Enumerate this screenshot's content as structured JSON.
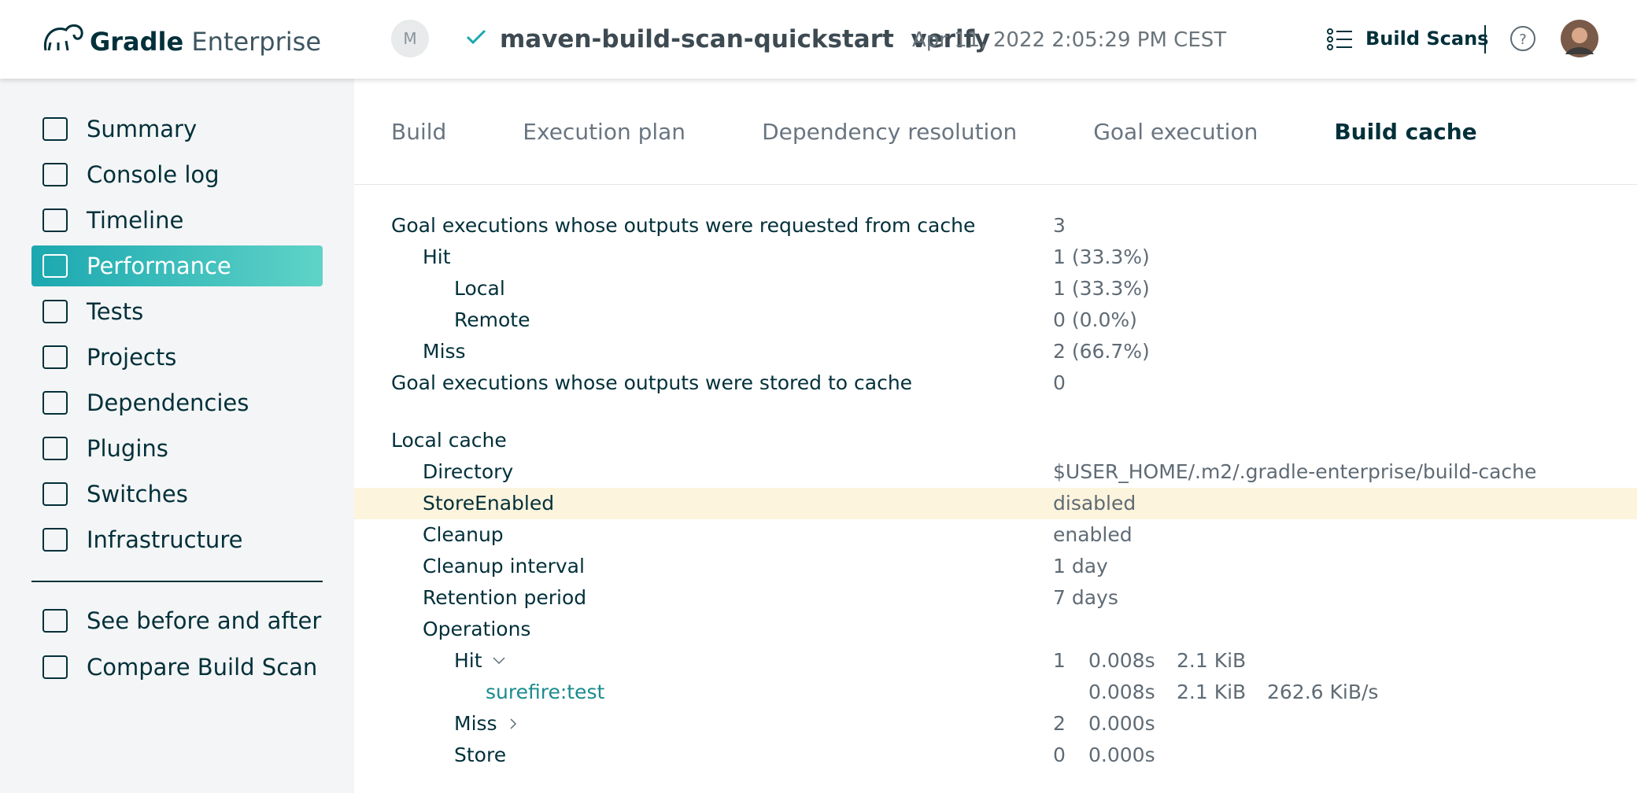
{
  "header": {
    "brand_bold": "Gradle",
    "brand_light": "Enterprise",
    "avatar_initial": "M",
    "project": "maven-build-scan-quickstart",
    "goal": "verify",
    "timestamp": "Apr 11, 2022 2:05:29 PM CEST",
    "build_scans": "Build Scans"
  },
  "sidebar": {
    "items": [
      {
        "label": "Summary"
      },
      {
        "label": "Console log"
      },
      {
        "label": "Timeline"
      },
      {
        "label": "Performance",
        "active": true
      },
      {
        "label": "Tests"
      },
      {
        "label": "Projects"
      },
      {
        "label": "Dependencies"
      },
      {
        "label": "Plugins"
      },
      {
        "label": "Switches"
      },
      {
        "label": "Infrastructure"
      }
    ],
    "extra": [
      {
        "label": "See before and after"
      },
      {
        "label": "Compare Build Scan"
      }
    ]
  },
  "tabs": [
    {
      "label": "Build"
    },
    {
      "label": "Execution plan"
    },
    {
      "label": "Dependency resolution"
    },
    {
      "label": "Goal execution"
    },
    {
      "label": "Build cache",
      "active": true
    }
  ],
  "sections": [
    {
      "rows": [
        {
          "label": "Goal executions whose outputs were requested from cache",
          "value": "3",
          "children": [
            {
              "label": "Hit",
              "value": "1 (33.3%)",
              "children": [
                {
                  "label": "Local",
                  "value": "1 (33.3%)"
                },
                {
                  "label": "Remote",
                  "value": "0 (0.0%)"
                }
              ]
            },
            {
              "label": "Miss",
              "value": "2 (66.7%)"
            }
          ]
        },
        {
          "label": "Goal executions whose outputs were stored to cache",
          "value": "0"
        }
      ]
    },
    {
      "rows": [
        {
          "label": "Local cache",
          "children": [
            {
              "label": "Directory",
              "value": "$USER_HOME/.m2/.gradle-enterprise/build-cache"
            },
            {
              "label": "StoreEnabled",
              "value": "disabled",
              "highlighted": true
            },
            {
              "label": "Cleanup",
              "value": "enabled"
            },
            {
              "label": "Cleanup interval",
              "value": "1 day"
            },
            {
              "label": "Retention period",
              "value": "7 days"
            },
            {
              "label": "Operations",
              "children": [
                {
                  "label": "Hit",
                  "count": "1",
                  "time": "0.008s",
                  "size": "2.1 KiB",
                  "expanded": true,
                  "children": [
                    {
                      "label": "surefire:test",
                      "link": true,
                      "time": "0.008s",
                      "size": "2.1 KiB",
                      "rate": "262.6 KiB/s"
                    }
                  ]
                },
                {
                  "label": "Miss",
                  "count": "2",
                  "time": "0.000s",
                  "expanded": false
                },
                {
                  "label": "Store",
                  "count": "0",
                  "time": "0.000s"
                }
              ]
            }
          ]
        }
      ]
    }
  ]
}
